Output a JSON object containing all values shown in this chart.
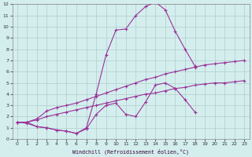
{
  "background_color": "#d4eeee",
  "grid_color": "#b0cccc",
  "line_color": "#993399",
  "xlabel": "Windchill (Refroidissement éolien,°C)",
  "xlim": [
    -0.5,
    23.5
  ],
  "ylim": [
    0,
    12
  ],
  "xticks": [
    0,
    1,
    2,
    3,
    4,
    5,
    6,
    7,
    8,
    9,
    10,
    11,
    12,
    13,
    14,
    15,
    16,
    17,
    18,
    19,
    20,
    21,
    22,
    23
  ],
  "yticks": [
    0,
    1,
    2,
    3,
    4,
    5,
    6,
    7,
    8,
    9,
    10,
    11,
    12
  ],
  "series": [
    {
      "x": [
        0,
        1,
        2,
        3,
        4,
        5,
        6,
        7,
        8,
        9,
        10,
        11,
        12,
        13,
        14,
        15,
        16,
        17,
        18,
        19,
        20,
        21,
        22,
        23
      ],
      "y": [
        1.5,
        1.5,
        1.1,
        1.0,
        0.8,
        0.7,
        0.5,
        1.0,
        4.0,
        7.5,
        9.7,
        9.8,
        11.0,
        11.8,
        12.2,
        11.5,
        9.6,
        8.0,
        6.5,
        null,
        null,
        null,
        null,
        null
      ]
    },
    {
      "x": [
        0,
        1,
        2,
        3,
        4,
        5,
        6,
        7,
        8,
        9,
        10,
        11,
        12,
        13,
        14,
        15,
        16,
        17,
        18,
        19,
        20,
        21,
        22,
        23
      ],
      "y": [
        1.5,
        1.4,
        1.1,
        1.0,
        0.8,
        0.7,
        0.5,
        0.9,
        2.2,
        3.0,
        3.2,
        2.2,
        2.0,
        3.3,
        4.8,
        5.0,
        4.5,
        3.5,
        2.4,
        null,
        null,
        null,
        null,
        null
      ]
    },
    {
      "x": [
        0,
        1,
        2,
        3,
        4,
        5,
        6,
        7,
        8,
        9,
        10,
        11,
        12,
        13,
        14,
        15,
        16,
        17,
        18,
        19,
        20,
        21,
        22,
        23
      ],
      "y": [
        1.5,
        1.5,
        1.8,
        2.5,
        2.8,
        3.0,
        3.2,
        3.5,
        3.8,
        4.1,
        4.4,
        4.7,
        5.0,
        5.3,
        5.5,
        5.8,
        6.0,
        6.2,
        6.4,
        6.6,
        6.7,
        6.8,
        6.9,
        7.0
      ]
    },
    {
      "x": [
        0,
        1,
        2,
        3,
        4,
        5,
        6,
        7,
        8,
        9,
        10,
        11,
        12,
        13,
        14,
        15,
        16,
        17,
        18,
        19,
        20,
        21,
        22,
        23
      ],
      "y": [
        1.5,
        1.5,
        1.7,
        2.0,
        2.2,
        2.4,
        2.6,
        2.8,
        3.0,
        3.2,
        3.4,
        3.6,
        3.8,
        4.0,
        4.1,
        4.3,
        4.5,
        4.6,
        4.8,
        4.9,
        5.0,
        5.0,
        5.1,
        5.2
      ]
    }
  ]
}
